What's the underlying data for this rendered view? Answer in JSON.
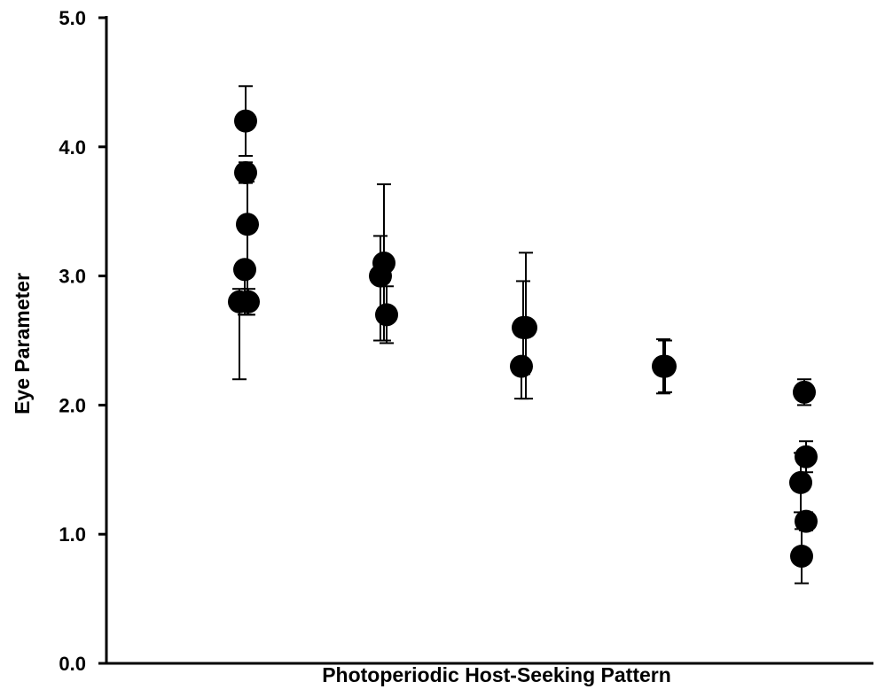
{
  "chart_data": {
    "type": "scatter",
    "title": "",
    "xlabel": "Photoperiodic Host-Seeking Pattern",
    "ylabel": "Eye Parameter",
    "ylim": [
      0,
      5
    ],
    "yticks": [
      "0.0",
      "1.0",
      "2.0",
      "3.0",
      "4.0",
      "5.0"
    ],
    "grid": false,
    "legend": "none",
    "marker_color": "#000000",
    "series": [
      {
        "group": 1,
        "points": [
          {
            "y": 4.2,
            "err_up": 0.27,
            "err_down": 0.27
          },
          {
            "y": 3.8,
            "err_up": 0.08,
            "err_down": 0.08
          },
          {
            "y": 3.4,
            "err_up": 0.33,
            "err_down": 0.7
          },
          {
            "y": 3.05,
            "err_up": 0.0,
            "err_down": 0.35
          },
          {
            "y": 2.8,
            "err_up": 0.1,
            "err_down": 0.6
          },
          {
            "y": 2.8,
            "err_up": 0.1,
            "err_down": 0.1
          }
        ]
      },
      {
        "group": 2,
        "points": [
          {
            "y": 3.1,
            "err_up": 0.61,
            "err_down": 0.6
          },
          {
            "y": 3.0,
            "err_up": 0.31,
            "err_down": 0.5
          },
          {
            "y": 2.7,
            "err_up": 0.22,
            "err_down": 0.22
          }
        ]
      },
      {
        "group": 3,
        "points": [
          {
            "y": 2.6,
            "err_up": 0.58,
            "err_down": 0.55
          },
          {
            "y": 2.6,
            "err_up": 0.36,
            "err_down": 0.36
          },
          {
            "y": 2.3,
            "err_up": 0.0,
            "err_down": 0.25
          }
        ]
      },
      {
        "group": 4,
        "points": [
          {
            "y": 2.3,
            "err_up": 0.21,
            "err_down": 0.21
          },
          {
            "y": 2.3,
            "err_up": 0.2,
            "err_down": 0.2
          }
        ]
      },
      {
        "group": 5,
        "points": [
          {
            "y": 2.1,
            "err_up": 0.1,
            "err_down": 0.1
          },
          {
            "y": 1.6,
            "err_up": 0.12,
            "err_down": 0.12
          },
          {
            "y": 1.4,
            "err_up": 0.23,
            "err_down": 0.23
          },
          {
            "y": 1.1,
            "err_up": 0.07,
            "err_down": 0.07
          },
          {
            "y": 0.83,
            "err_up": 0.21,
            "err_down": 0.21
          }
        ]
      }
    ]
  }
}
